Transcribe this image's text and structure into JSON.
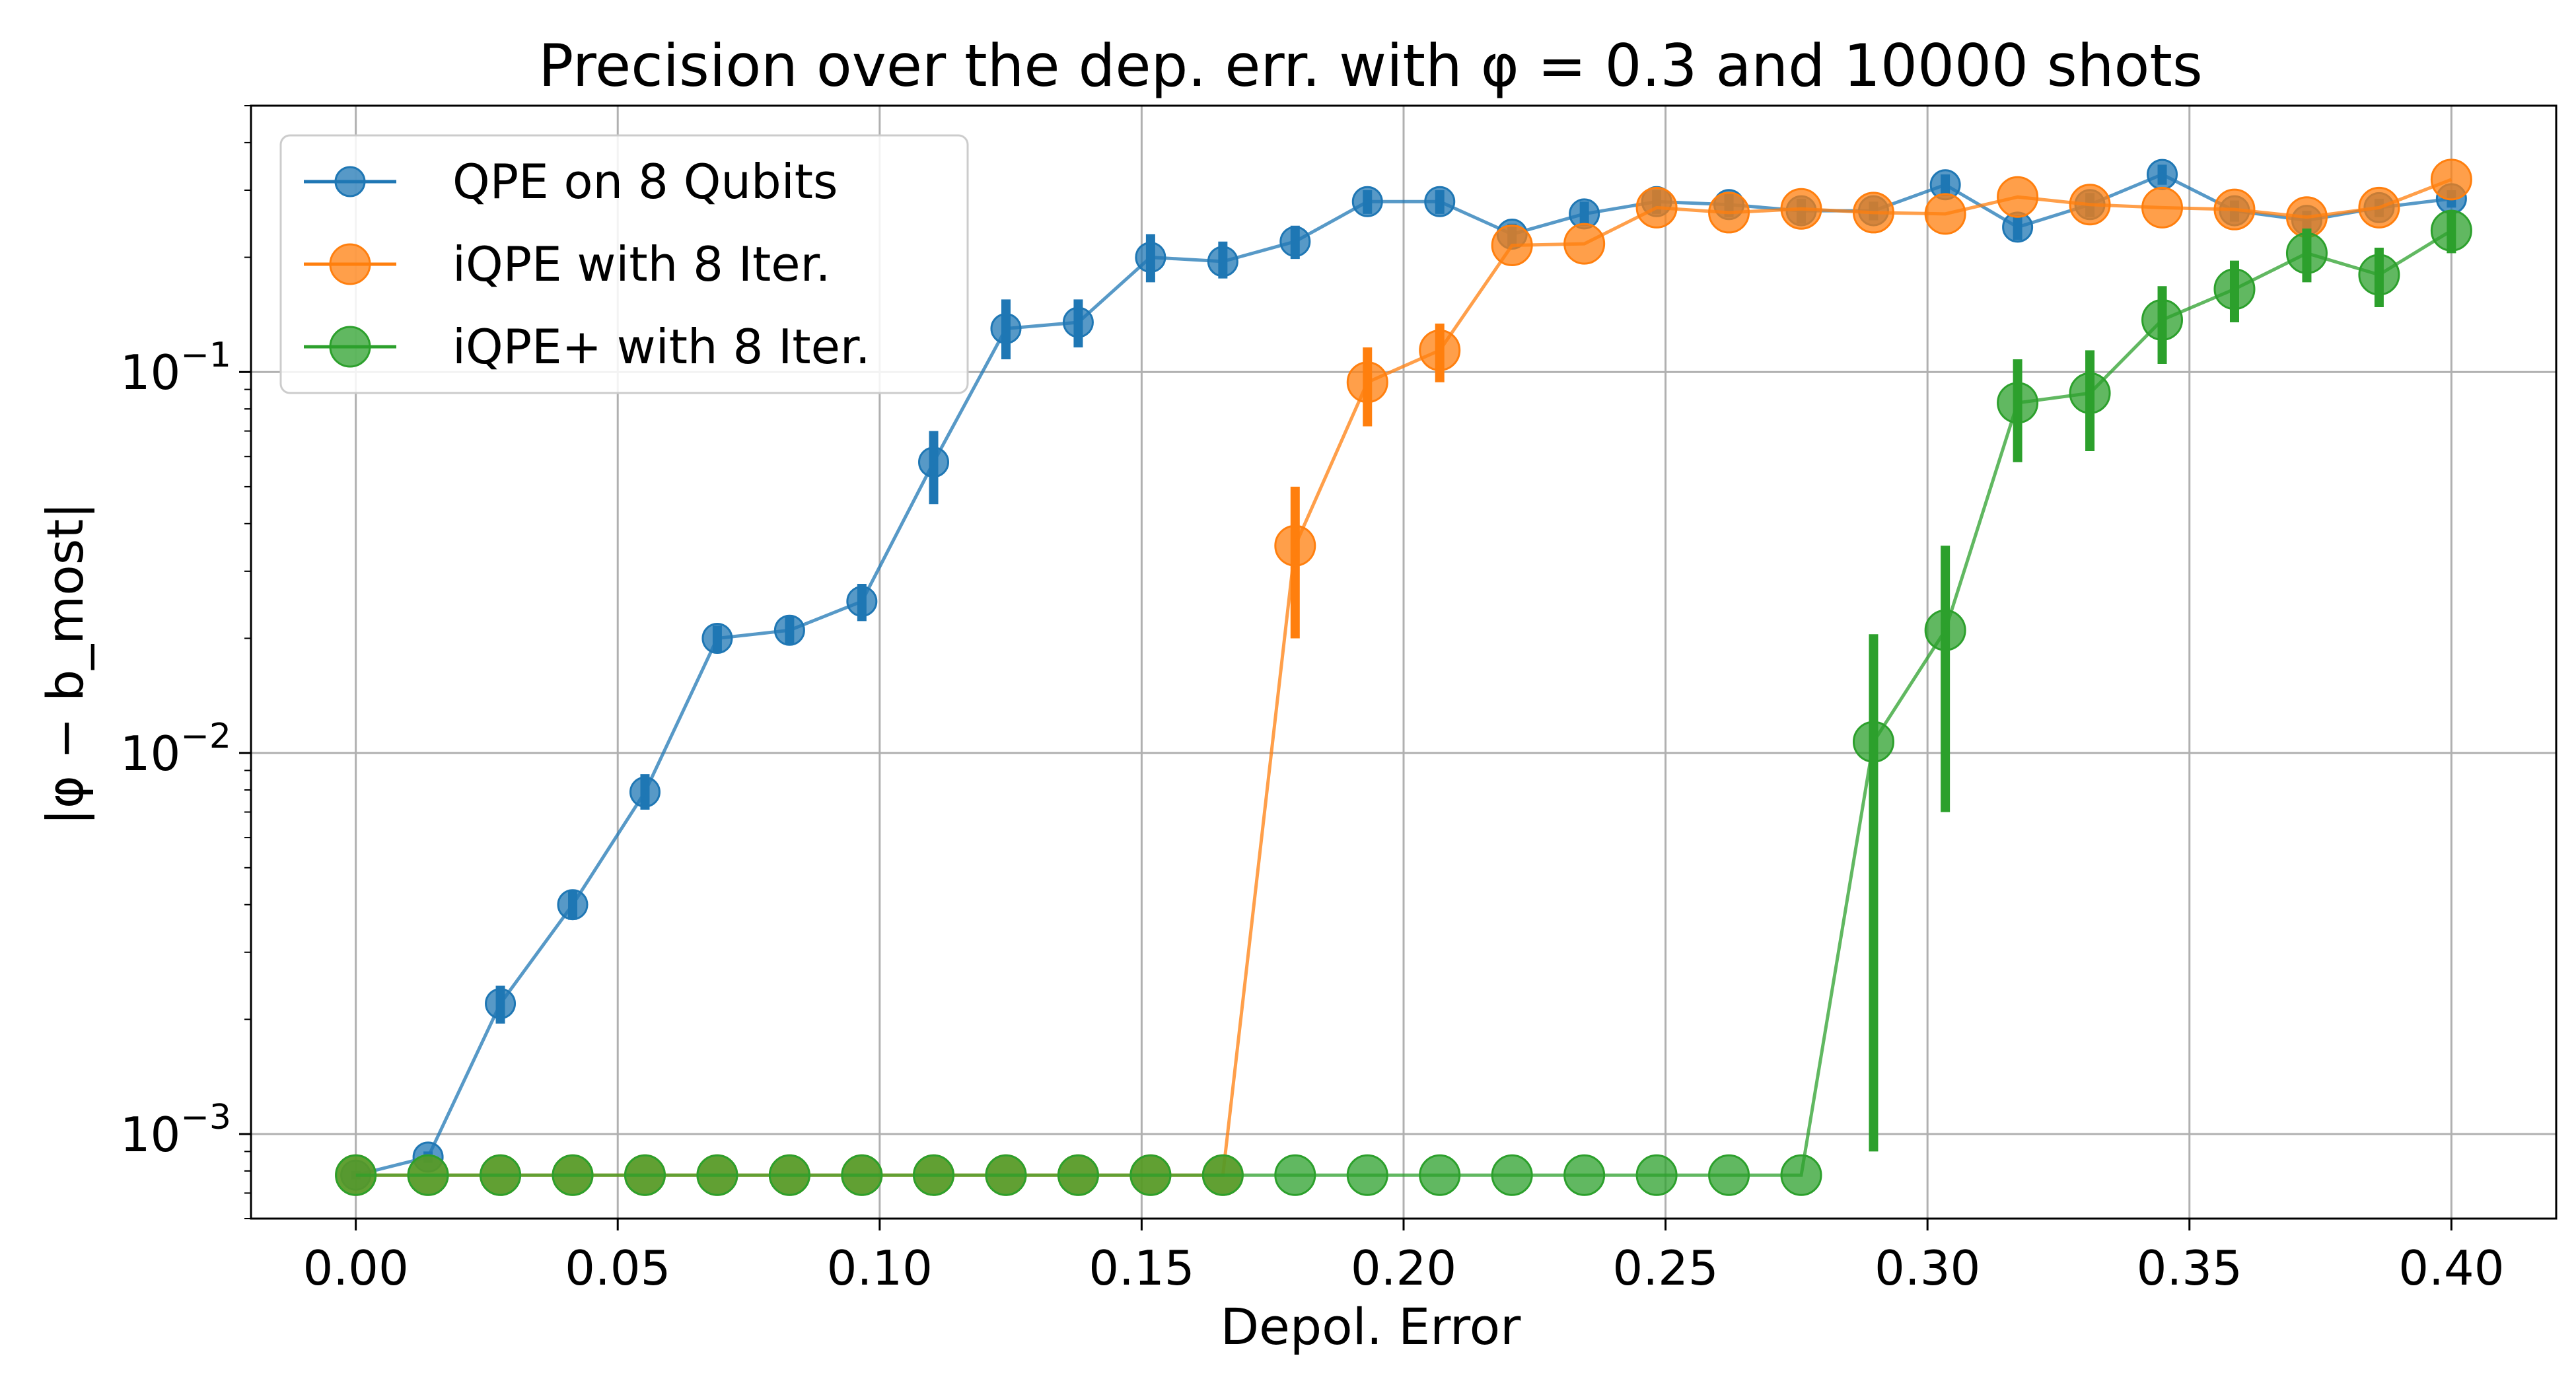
{
  "chart_data": {
    "type": "line",
    "title": "Precision over the dep. err. with φ = 0.3 and 10000 shots",
    "xlabel": "Depol. Error",
    "ylabel": "|φ − b_most|",
    "xlim": [
      -0.02,
      0.42
    ],
    "ylim": [
      0.0006,
      0.5
    ],
    "yscale": "log",
    "grid": true,
    "legend_placement": "upper-left",
    "x_ticks": [
      "0.00",
      "0.05",
      "0.10",
      "0.15",
      "0.20",
      "0.25",
      "0.30",
      "0.35",
      "0.40"
    ],
    "x_tick_values": [
      0.0,
      0.05,
      0.1,
      0.15,
      0.2,
      0.25,
      0.3,
      0.35,
      0.4
    ],
    "y_ticks": [
      {
        "value": 0.001,
        "base": "10",
        "exp": "−3"
      },
      {
        "value": 0.01,
        "base": "10",
        "exp": "−2"
      },
      {
        "value": 0.1,
        "base": "10",
        "exp": "−1"
      }
    ],
    "x": [
      0.0,
      0.0138,
      0.0276,
      0.0414,
      0.0552,
      0.069,
      0.0828,
      0.0966,
      0.1103,
      0.1241,
      0.1379,
      0.1517,
      0.1655,
      0.1793,
      0.1931,
      0.2069,
      0.2207,
      0.2345,
      0.2483,
      0.2621,
      0.2759,
      0.2897,
      0.3034,
      0.3172,
      0.331,
      0.3448,
      0.3586,
      0.3724,
      0.3862,
      0.4
    ],
    "series": [
      {
        "name": "QPE on 8 Qubits",
        "color": "#1f77b4",
        "values": [
          0.00078,
          0.00087,
          0.0022,
          0.004,
          0.0079,
          0.02,
          0.021,
          0.025,
          0.058,
          0.13,
          0.135,
          0.2,
          0.195,
          0.22,
          0.28,
          0.28,
          0.23,
          0.26,
          0.28,
          0.275,
          0.265,
          0.265,
          0.31,
          0.24,
          0.275,
          0.33,
          0.265,
          0.25,
          0.27,
          0.285
        ],
        "err_low": [
          0.00076,
          0.00084,
          0.00195,
          0.00365,
          0.0071,
          0.0184,
          0.0193,
          0.0222,
          0.045,
          0.108,
          0.116,
          0.172,
          0.176,
          0.198,
          0.26,
          0.26,
          0.213,
          0.242,
          0.26,
          0.255,
          0.245,
          0.25,
          0.29,
          0.222,
          0.255,
          0.31,
          0.248,
          0.235,
          0.255,
          0.27
        ],
        "err_high": [
          0.0008,
          0.0009,
          0.00245,
          0.00435,
          0.0088,
          0.0216,
          0.0228,
          0.0278,
          0.07,
          0.155,
          0.155,
          0.23,
          0.22,
          0.242,
          0.3,
          0.3,
          0.245,
          0.28,
          0.3,
          0.295,
          0.285,
          0.28,
          0.33,
          0.258,
          0.295,
          0.35,
          0.282,
          0.265,
          0.285,
          0.3
        ]
      },
      {
        "name": "iQPE with 8 Iter.",
        "color": "#ff7f0e",
        "values": [
          0.00078,
          0.00078,
          0.00078,
          0.00078,
          0.00078,
          0.00078,
          0.00078,
          0.00078,
          0.00078,
          0.00078,
          0.00078,
          0.00078,
          0.00078,
          0.035,
          0.094,
          0.114,
          0.215,
          0.217,
          0.27,
          0.262,
          0.268,
          0.262,
          0.26,
          0.288,
          0.275,
          0.27,
          0.267,
          0.255,
          0.27,
          0.32
        ],
        "err_low": [
          0.00078,
          0.00078,
          0.00078,
          0.00078,
          0.00078,
          0.00078,
          0.00078,
          0.00078,
          0.00078,
          0.00078,
          0.00078,
          0.00078,
          0.00078,
          0.02,
          0.072,
          0.094,
          0.215,
          0.217,
          0.27,
          0.262,
          0.268,
          0.262,
          0.26,
          0.288,
          0.275,
          0.27,
          0.267,
          0.255,
          0.27,
          0.32
        ],
        "err_high": [
          0.00078,
          0.00078,
          0.00078,
          0.00078,
          0.00078,
          0.00078,
          0.00078,
          0.00078,
          0.00078,
          0.00078,
          0.00078,
          0.00078,
          0.00078,
          0.05,
          0.116,
          0.134,
          0.215,
          0.217,
          0.27,
          0.262,
          0.268,
          0.262,
          0.26,
          0.288,
          0.275,
          0.27,
          0.267,
          0.255,
          0.27,
          0.32
        ]
      },
      {
        "name": "iQPE+ with 8 Iter.",
        "color": "#2ca02c",
        "values": [
          0.00078,
          0.00078,
          0.00078,
          0.00078,
          0.00078,
          0.00078,
          0.00078,
          0.00078,
          0.00078,
          0.00078,
          0.00078,
          0.00078,
          0.00078,
          0.00078,
          0.00078,
          0.00078,
          0.00078,
          0.00078,
          0.00078,
          0.00078,
          0.00078,
          0.0107,
          0.021,
          0.083,
          0.088,
          0.137,
          0.165,
          0.205,
          0.18,
          0.235
        ],
        "err_low": [
          0.00078,
          0.00078,
          0.00078,
          0.00078,
          0.00078,
          0.00078,
          0.00078,
          0.00078,
          0.00078,
          0.00078,
          0.00078,
          0.00078,
          0.00078,
          0.00078,
          0.00078,
          0.00078,
          0.00078,
          0.00078,
          0.00078,
          0.00078,
          0.00078,
          0.0009,
          0.007,
          0.058,
          0.062,
          0.105,
          0.135,
          0.172,
          0.148,
          0.205
        ],
        "err_high": [
          0.00078,
          0.00078,
          0.00078,
          0.00078,
          0.00078,
          0.00078,
          0.00078,
          0.00078,
          0.00078,
          0.00078,
          0.00078,
          0.00078,
          0.00078,
          0.00078,
          0.00078,
          0.00078,
          0.00078,
          0.00078,
          0.00078,
          0.00078,
          0.00078,
          0.0205,
          0.035,
          0.108,
          0.114,
          0.168,
          0.196,
          0.238,
          0.212,
          0.265
        ]
      }
    ]
  }
}
